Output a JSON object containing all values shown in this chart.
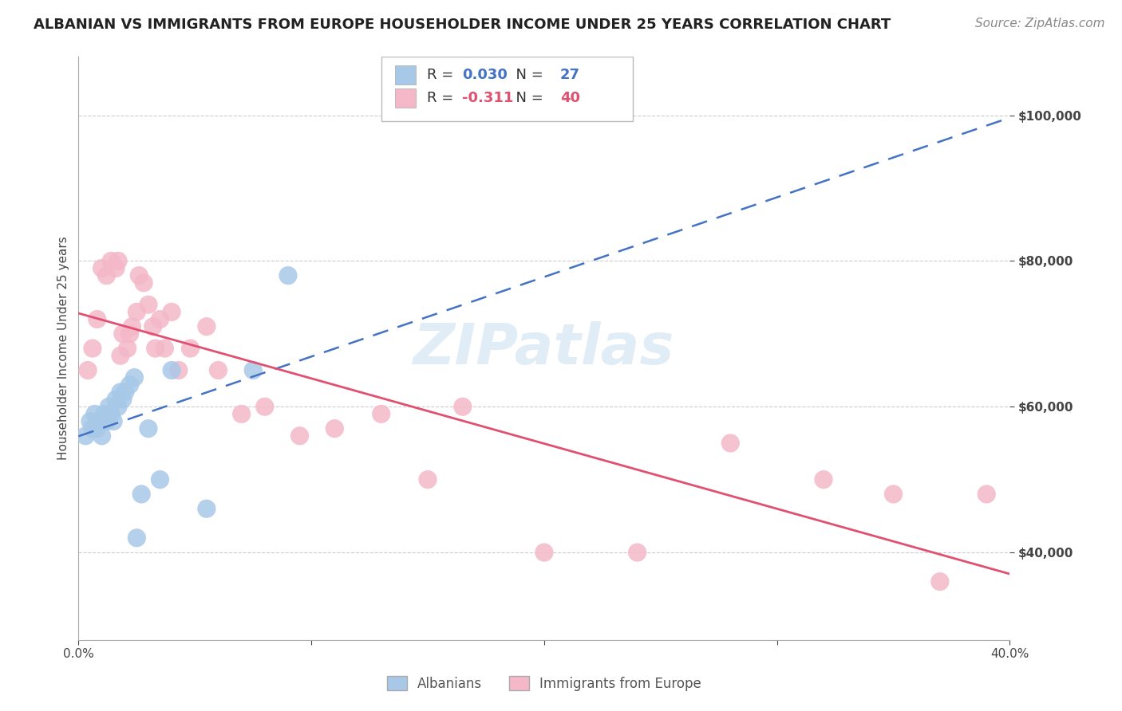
{
  "title": "ALBANIAN VS IMMIGRANTS FROM EUROPE HOUSEHOLDER INCOME UNDER 25 YEARS CORRELATION CHART",
  "source": "Source: ZipAtlas.com",
  "ylabel": "Householder Income Under 25 years",
  "xlim": [
    0.0,
    0.4
  ],
  "ylim": [
    28000,
    108000
  ],
  "yticks": [
    40000,
    60000,
    80000,
    100000
  ],
  "ytick_labels": [
    "$40,000",
    "$60,000",
    "$80,000",
    "$100,000"
  ],
  "xticks": [
    0.0,
    0.1,
    0.2,
    0.3,
    0.4
  ],
  "xtick_labels": [
    "0.0%",
    "",
    "",
    "",
    "40.0%"
  ],
  "r_albanian": 0.03,
  "n_albanian": 27,
  "r_europe": -0.311,
  "n_europe": 40,
  "albanian_color": "#a8c8e8",
  "europe_color": "#f4b8c8",
  "albanian_line_color": "#4472c4",
  "europe_line_color": "#e05070",
  "albanian_x": [
    0.003,
    0.005,
    0.006,
    0.007,
    0.008,
    0.009,
    0.01,
    0.011,
    0.012,
    0.013,
    0.014,
    0.015,
    0.016,
    0.017,
    0.018,
    0.019,
    0.02,
    0.022,
    0.024,
    0.025,
    0.027,
    0.03,
    0.035,
    0.04,
    0.055,
    0.075,
    0.09
  ],
  "albanian_y": [
    56000,
    58000,
    57000,
    59000,
    57000,
    58000,
    56000,
    59000,
    58000,
    60000,
    59000,
    58000,
    61000,
    60000,
    62000,
    61000,
    62000,
    63000,
    64000,
    42000,
    48000,
    57000,
    50000,
    65000,
    46000,
    65000,
    78000
  ],
  "europe_x": [
    0.004,
    0.006,
    0.008,
    0.01,
    0.012,
    0.014,
    0.016,
    0.017,
    0.018,
    0.019,
    0.021,
    0.022,
    0.023,
    0.025,
    0.026,
    0.028,
    0.03,
    0.032,
    0.033,
    0.035,
    0.037,
    0.04,
    0.043,
    0.048,
    0.055,
    0.06,
    0.07,
    0.08,
    0.095,
    0.11,
    0.13,
    0.15,
    0.165,
    0.2,
    0.24,
    0.28,
    0.32,
    0.35,
    0.37,
    0.39
  ],
  "europe_y": [
    65000,
    68000,
    72000,
    79000,
    78000,
    80000,
    79000,
    80000,
    67000,
    70000,
    68000,
    70000,
    71000,
    73000,
    78000,
    77000,
    74000,
    71000,
    68000,
    72000,
    68000,
    73000,
    65000,
    68000,
    71000,
    65000,
    59000,
    60000,
    56000,
    57000,
    59000,
    50000,
    60000,
    40000,
    40000,
    55000,
    50000,
    48000,
    36000,
    48000
  ],
  "background_color": "#ffffff",
  "grid_color": "#cccccc",
  "title_fontsize": 13,
  "axis_label_fontsize": 11,
  "tick_fontsize": 11,
  "legend_fontsize": 13,
  "source_fontsize": 11
}
